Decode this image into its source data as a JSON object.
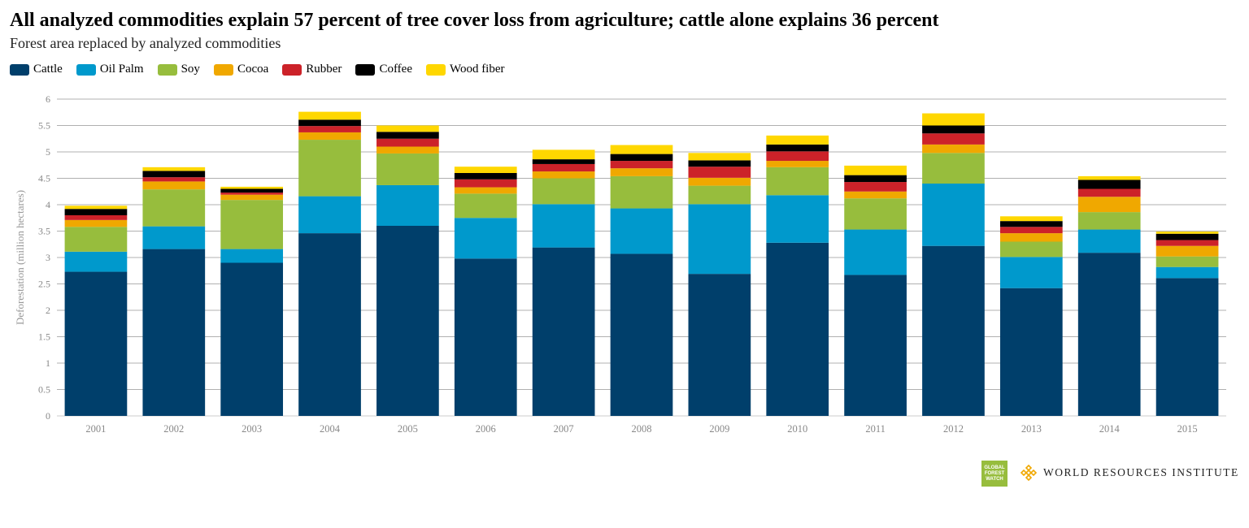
{
  "header": {
    "title": "All analyzed commodities explain 57 percent of tree cover loss from agriculture; cattle alone explains 36 percent",
    "subtitle": "Forest area replaced by analyzed commodities"
  },
  "logos": {
    "gfw_lines": [
      "GLOBAL",
      "FOREST",
      "WATCH"
    ],
    "wri_text": "WORLD RESOURCES INSTITUTE"
  },
  "chart_data": {
    "type": "bar",
    "stacked": true,
    "title": "All analyzed commodities explain 57 percent of tree cover loss from agriculture; cattle alone explains 36 percent",
    "subtitle": "Forest area replaced by analyzed commodities",
    "xlabel": "",
    "ylabel": "Deforestation (million hectares)",
    "ylim": [
      0,
      6
    ],
    "yticks": [
      0,
      0.5,
      1,
      1.5,
      2,
      2.5,
      3,
      3.5,
      4,
      4.5,
      5,
      5.5,
      6
    ],
    "ytick_labels": [
      "0",
      "0.5",
      "1",
      "1.5",
      "2",
      "2.5",
      "3",
      "3.5",
      "4",
      "4.5",
      "5",
      "5.5",
      "6"
    ],
    "grid": true,
    "legend_position": "top-left",
    "categories": [
      "2001",
      "2002",
      "2003",
      "2004",
      "2005",
      "2006",
      "2007",
      "2008",
      "2009",
      "2010",
      "2011",
      "2012",
      "2013",
      "2014",
      "2015"
    ],
    "series": [
      {
        "name": "Cattle",
        "color": "#003f6b",
        "values": [
          2.73,
          3.16,
          2.9,
          3.46,
          3.6,
          2.98,
          3.19,
          3.07,
          2.69,
          3.28,
          2.67,
          3.22,
          2.42,
          3.09,
          2.61
        ]
      },
      {
        "name": "Oil Palm",
        "color": "#0099cc",
        "values": [
          0.38,
          0.43,
          0.26,
          0.7,
          0.77,
          0.77,
          0.82,
          0.86,
          1.32,
          0.9,
          0.86,
          1.18,
          0.59,
          0.44,
          0.21
        ]
      },
      {
        "name": "Soy",
        "color": "#97bd3d",
        "values": [
          0.47,
          0.7,
          0.93,
          1.07,
          0.6,
          0.46,
          0.49,
          0.61,
          0.35,
          0.53,
          0.59,
          0.58,
          0.29,
          0.33,
          0.2
        ]
      },
      {
        "name": "Cocoa",
        "color": "#f0a800",
        "values": [
          0.13,
          0.15,
          0.1,
          0.14,
          0.13,
          0.12,
          0.13,
          0.15,
          0.15,
          0.12,
          0.13,
          0.16,
          0.16,
          0.29,
          0.2
        ]
      },
      {
        "name": "Rubber",
        "color": "#cc2229",
        "values": [
          0.09,
          0.08,
          0.04,
          0.12,
          0.15,
          0.15,
          0.14,
          0.14,
          0.21,
          0.18,
          0.18,
          0.21,
          0.12,
          0.15,
          0.11
        ]
      },
      {
        "name": "Coffee",
        "color": "#000000",
        "values": [
          0.12,
          0.12,
          0.07,
          0.12,
          0.13,
          0.12,
          0.09,
          0.13,
          0.12,
          0.13,
          0.13,
          0.15,
          0.11,
          0.17,
          0.12
        ]
      },
      {
        "name": "Wood fiber",
        "color": "#ffd700",
        "values": [
          0.06,
          0.07,
          0.04,
          0.15,
          0.12,
          0.12,
          0.18,
          0.17,
          0.14,
          0.17,
          0.18,
          0.23,
          0.09,
          0.07,
          0.04
        ]
      }
    ]
  }
}
